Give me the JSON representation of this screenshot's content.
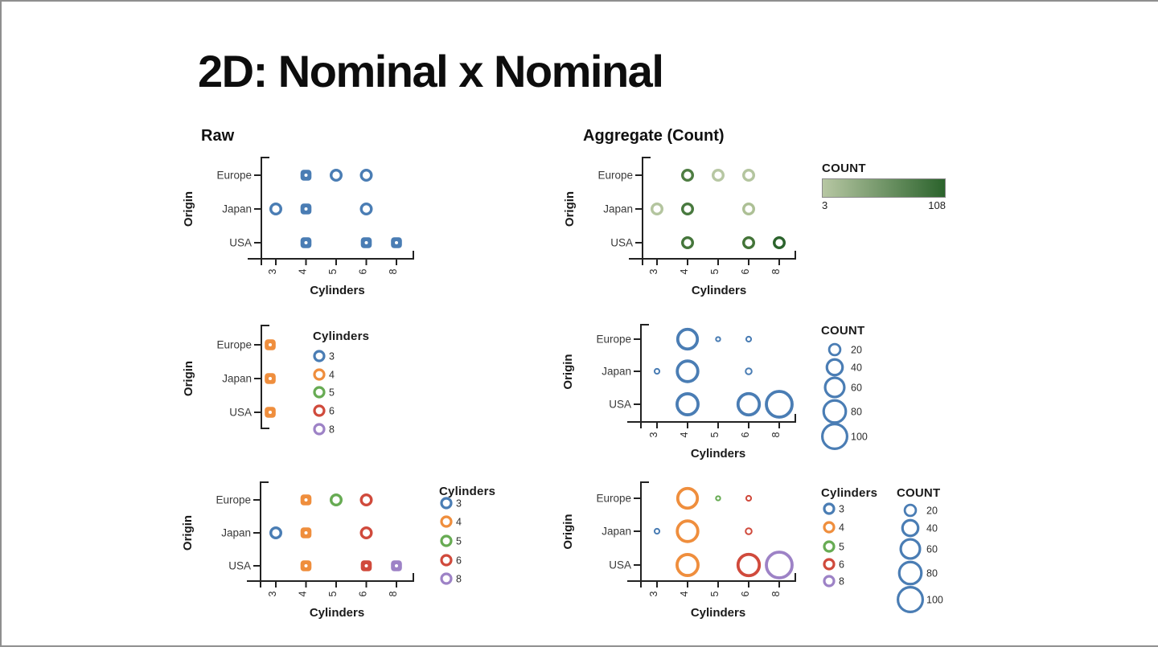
{
  "slide": {
    "title": "2D: Nominal x Nominal",
    "left_header": "Raw",
    "right_header": "Aggregate (Count)"
  },
  "axis": {
    "x_title": "Cylinders",
    "y_title": "Origin",
    "x_categories": [
      "3",
      "4",
      "5",
      "6",
      "8"
    ],
    "y_categories": [
      "Europe",
      "Japan",
      "USA"
    ]
  },
  "palette": {
    "cyl_3": "#4a7db4",
    "cyl_4": "#ef8e3d",
    "cyl_5": "#67ab53",
    "cyl_6": "#d04a3c",
    "cyl_8": "#9d82c6",
    "mono_blue": "#4a7db4",
    "axis_color": "#222222",
    "text_color": "#3a3a3a",
    "green_low": "#b7c7a3",
    "green_high": "#2b632c"
  },
  "cells": [
    {
      "origin": "Europe",
      "cylinders": "4",
      "count": 63,
      "count_color": "#4e7d42"
    },
    {
      "origin": "Europe",
      "cylinders": "5",
      "count": 3,
      "count_color": "#b7c7a3"
    },
    {
      "origin": "Europe",
      "cylinders": "6",
      "count": 4,
      "count_color": "#b4c59f"
    },
    {
      "origin": "Japan",
      "cylinders": "3",
      "count": 4,
      "count_color": "#b4c59f"
    },
    {
      "origin": "Japan",
      "cylinders": "4",
      "count": 69,
      "count_color": "#48793e"
    },
    {
      "origin": "Japan",
      "cylinders": "6",
      "count": 6,
      "count_color": "#adc095"
    },
    {
      "origin": "USA",
      "cylinders": "4",
      "count": 72,
      "count_color": "#45763b"
    },
    {
      "origin": "USA",
      "cylinders": "6",
      "count": 74,
      "count_color": "#437438"
    },
    {
      "origin": "USA",
      "cylinders": "8",
      "count": 108,
      "count_color": "#2b632c"
    }
  ],
  "chart_data": [
    {
      "id": "raw-position",
      "panel": "Raw",
      "type": "scatter",
      "xlabel": "Cylinders",
      "ylabel": "Origin",
      "x_categories": [
        "3",
        "4",
        "5",
        "6",
        "8"
      ],
      "y_categories": [
        "Europe",
        "Japan",
        "USA"
      ],
      "marker": "open-circle",
      "color": "#4a7db4",
      "points": [
        [
          "Europe",
          "4"
        ],
        [
          "Europe",
          "5"
        ],
        [
          "Europe",
          "6"
        ],
        [
          "Japan",
          "3"
        ],
        [
          "Japan",
          "4"
        ],
        [
          "Japan",
          "6"
        ],
        [
          "USA",
          "4"
        ],
        [
          "USA",
          "6"
        ],
        [
          "USA",
          "8"
        ]
      ]
    },
    {
      "id": "agg-count-color",
      "panel": "Aggregate (Count)",
      "type": "scatter",
      "xlabel": "Cylinders",
      "ylabel": "Origin",
      "x_categories": [
        "3",
        "4",
        "5",
        "6",
        "8"
      ],
      "y_categories": [
        "Europe",
        "Japan",
        "USA"
      ],
      "color_scale": {
        "field": "COUNT",
        "min": 3,
        "max": 108,
        "low": "#b7c7a3",
        "high": "#2b632c"
      },
      "cells": [
        [
          "Europe",
          "4",
          63
        ],
        [
          "Europe",
          "5",
          3
        ],
        [
          "Europe",
          "6",
          4
        ],
        [
          "Japan",
          "3",
          4
        ],
        [
          "Japan",
          "4",
          69
        ],
        [
          "Japan",
          "6",
          6
        ],
        [
          "USA",
          "4",
          72
        ],
        [
          "USA",
          "6",
          74
        ],
        [
          "USA",
          "8",
          108
        ]
      ]
    },
    {
      "id": "raw-color-overplot",
      "panel": "Raw",
      "type": "scatter-1d",
      "ylabel": "Origin",
      "y_categories": [
        "Europe",
        "Japan",
        "USA"
      ],
      "color_field": "Cylinders",
      "visible_color": "#ef8e3d",
      "points": [
        [
          "Europe"
        ],
        [
          "Japan"
        ],
        [
          "USA"
        ]
      ]
    },
    {
      "id": "agg-count-size",
      "panel": "Aggregate (Count)",
      "type": "bubble",
      "xlabel": "Cylinders",
      "ylabel": "Origin",
      "size_field": "COUNT",
      "color": "#4a7db4",
      "cells": [
        [
          "Europe",
          "4",
          63
        ],
        [
          "Europe",
          "5",
          3
        ],
        [
          "Europe",
          "6",
          4
        ],
        [
          "Japan",
          "3",
          4
        ],
        [
          "Japan",
          "4",
          69
        ],
        [
          "Japan",
          "6",
          6
        ],
        [
          "USA",
          "4",
          72
        ],
        [
          "USA",
          "6",
          74
        ],
        [
          "USA",
          "8",
          108
        ]
      ]
    },
    {
      "id": "raw-color",
      "panel": "Raw",
      "type": "scatter",
      "xlabel": "Cylinders",
      "ylabel": "Origin",
      "color_field": "Cylinders",
      "points": [
        [
          "Europe",
          "4"
        ],
        [
          "Europe",
          "5"
        ],
        [
          "Europe",
          "6"
        ],
        [
          "Japan",
          "3"
        ],
        [
          "Japan",
          "4"
        ],
        [
          "Japan",
          "6"
        ],
        [
          "USA",
          "4"
        ],
        [
          "USA",
          "6"
        ],
        [
          "USA",
          "8"
        ]
      ]
    },
    {
      "id": "agg-color-size",
      "panel": "Aggregate (Count)",
      "type": "bubble",
      "xlabel": "Cylinders",
      "ylabel": "Origin",
      "color_field": "Cylinders",
      "size_field": "COUNT",
      "cells": [
        [
          "Europe",
          "4",
          63
        ],
        [
          "Europe",
          "5",
          3
        ],
        [
          "Europe",
          "6",
          4
        ],
        [
          "Japan",
          "3",
          4
        ],
        [
          "Japan",
          "4",
          69
        ],
        [
          "Japan",
          "6",
          6
        ],
        [
          "USA",
          "4",
          72
        ],
        [
          "USA",
          "6",
          74
        ],
        [
          "USA",
          "8",
          108
        ]
      ]
    }
  ],
  "legends": {
    "gradient": {
      "title": "COUNT",
      "min_label": "3",
      "max_label": "108"
    },
    "size": {
      "title": "COUNT",
      "values": [
        "20",
        "40",
        "60",
        "80",
        "100"
      ]
    },
    "cylinders": {
      "title": "Cylinders",
      "items": [
        {
          "label": "3",
          "color": "#4a7db4"
        },
        {
          "label": "4",
          "color": "#ef8e3d"
        },
        {
          "label": "5",
          "color": "#67ab53"
        },
        {
          "label": "6",
          "color": "#d04a3c"
        },
        {
          "label": "8",
          "color": "#9d82c6"
        }
      ]
    }
  }
}
